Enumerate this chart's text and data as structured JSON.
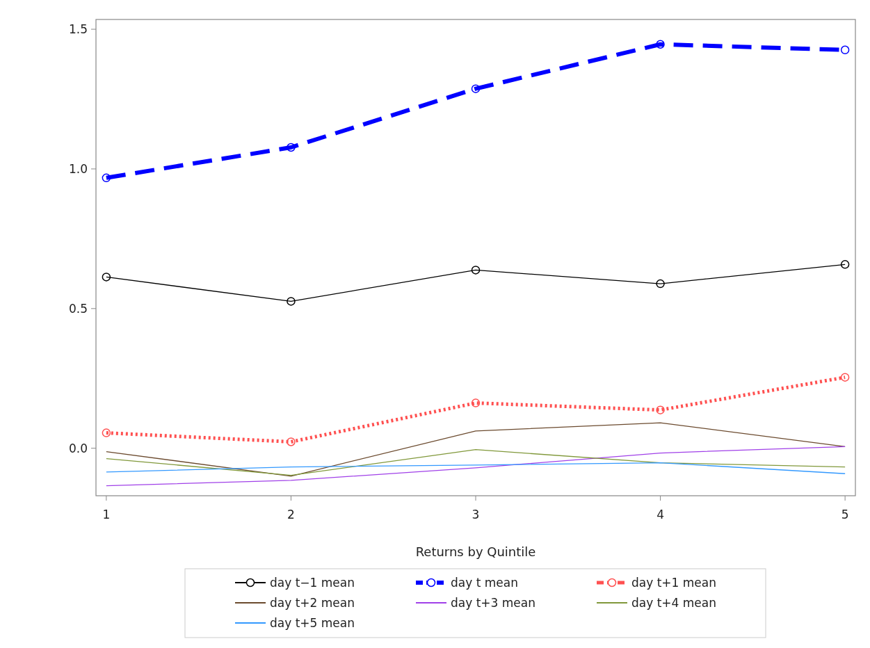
{
  "chart_data": {
    "type": "line",
    "xlabel": "Returns by Quintile",
    "x": [
      1,
      2,
      3,
      4,
      5
    ],
    "xlim": [
      0.944,
      5.056
    ],
    "xticks": [
      1,
      2,
      3,
      4,
      5
    ],
    "ylim": [
      -0.17,
      1.535
    ],
    "yticks": [
      {
        "value": 0,
        "label": "0.0"
      },
      {
        "value": 0.5,
        "label": "0.5"
      },
      {
        "value": 1,
        "label": "1.0"
      },
      {
        "value": 1.5,
        "label": "1.5"
      }
    ],
    "grid": false,
    "legend": "bottom",
    "series": [
      {
        "name": "day t−1 mean",
        "color": "#000000",
        "line_style": "solid",
        "marker": "circle",
        "values": [
          0.613,
          0.526,
          0.638,
          0.589,
          0.658
        ]
      },
      {
        "name": "day t mean",
        "color": "#0000ff",
        "line_style": "dashed",
        "marker": "circle",
        "values": [
          0.968,
          1.077,
          1.287,
          1.446,
          1.426
        ]
      },
      {
        "name": "day t+1 mean",
        "color": "#ff5050",
        "line_style": "dotted",
        "marker": "circle",
        "values": [
          0.055,
          0.023,
          0.162,
          0.137,
          0.254
        ]
      },
      {
        "name": "day t+2 mean",
        "color": "#6b4a2e",
        "line_style": "solid",
        "marker": "none",
        "values": [
          -0.012,
          -0.1,
          0.062,
          0.091,
          0.006
        ]
      },
      {
        "name": "day t+3 mean",
        "color": "#a040e8",
        "line_style": "solid",
        "marker": "none",
        "values": [
          -0.134,
          -0.115,
          -0.07,
          -0.017,
          0.006
        ]
      },
      {
        "name": "day t+4 mean",
        "color": "#80983a",
        "line_style": "solid",
        "marker": "none",
        "values": [
          -0.037,
          -0.097,
          -0.005,
          -0.052,
          -0.067
        ]
      },
      {
        "name": "day t+5 mean",
        "color": "#3399ff",
        "line_style": "solid",
        "marker": "none",
        "values": [
          -0.085,
          -0.067,
          -0.06,
          -0.052,
          -0.091
        ]
      }
    ]
  }
}
